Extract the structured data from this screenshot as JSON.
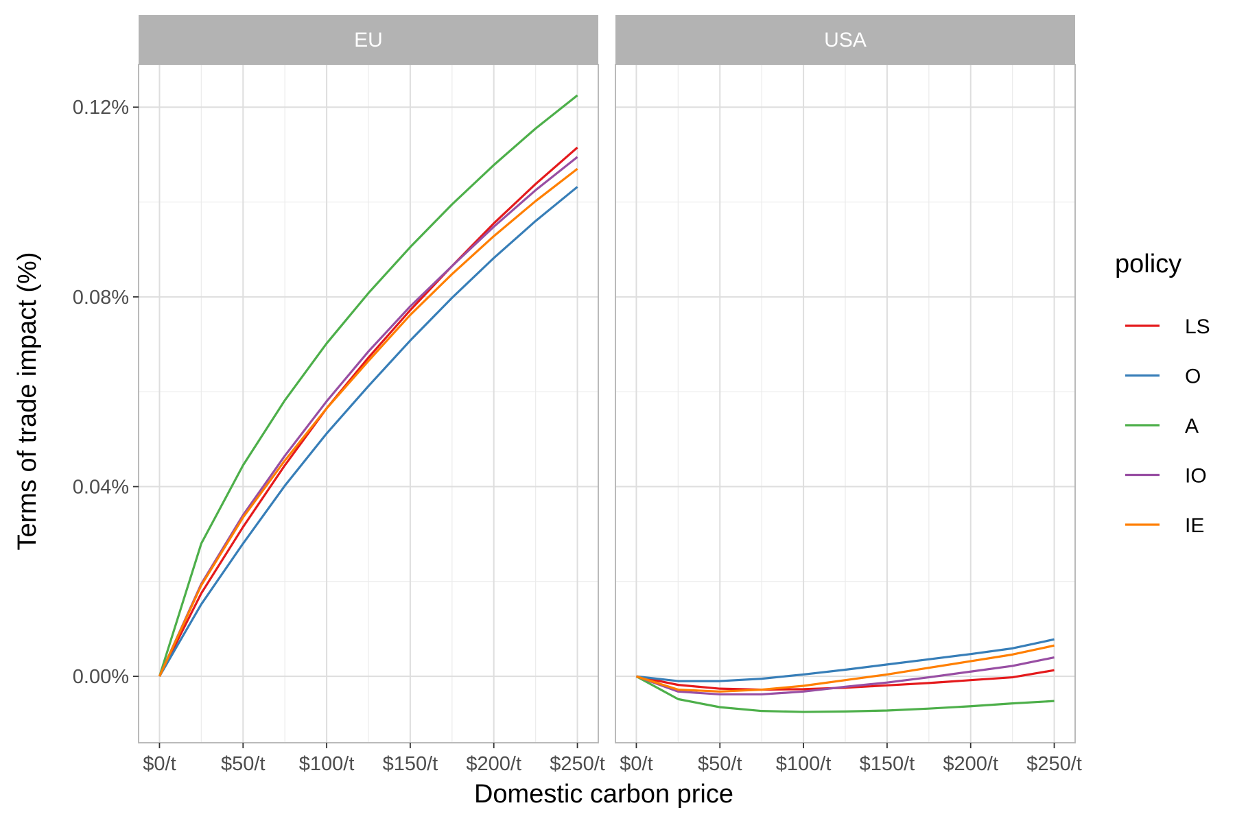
{
  "chart_data": {
    "type": "line",
    "xlabel": "Domestic carbon price",
    "ylabel": "Terms of trade impact (%)",
    "x": [
      0,
      25,
      50,
      75,
      100,
      125,
      150,
      175,
      200,
      225,
      250
    ],
    "x_ticks": [
      0,
      50,
      100,
      150,
      200,
      250
    ],
    "x_tick_labels": [
      "$0/t",
      "$50/t",
      "$100/t",
      "$150/t",
      "$200/t",
      "$250/t"
    ],
    "xlim": [
      -12.5,
      262.5
    ],
    "y_ticks": [
      0,
      0.04,
      0.08,
      0.12
    ],
    "y_tick_labels": [
      "0.00%",
      "0.04%",
      "0.08%",
      "0.12%"
    ],
    "ylim": [
      -0.014,
      0.129
    ],
    "grid": true,
    "legend": {
      "title": "policy",
      "placement": "right",
      "entries": [
        {
          "name": "LS",
          "color": "#e41a1c"
        },
        {
          "name": "O",
          "color": "#377eb8"
        },
        {
          "name": "A",
          "color": "#4daf4a"
        },
        {
          "name": "IO",
          "color": "#984ea3"
        },
        {
          "name": "IE",
          "color": "#ff7f00"
        }
      ]
    },
    "facets": [
      {
        "label": "EU",
        "series": [
          {
            "name": "LS",
            "color": "#e41a1c",
            "values": [
              0,
              0.0175,
              0.0315,
              0.0445,
              0.0565,
              0.0672,
              0.0772,
              0.0865,
              0.0955,
              0.1038,
              0.1115
            ]
          },
          {
            "name": "O",
            "color": "#377eb8",
            "values": [
              0,
              0.0152,
              0.028,
              0.0402,
              0.0512,
              0.0612,
              0.0708,
              0.0798,
              0.0882,
              0.096,
              0.1032
            ]
          },
          {
            "name": "A",
            "color": "#4daf4a",
            "values": [
              0,
              0.028,
              0.0445,
              0.0582,
              0.0702,
              0.0808,
              0.0905,
              0.0995,
              0.1078,
              0.1155,
              0.1225
            ]
          },
          {
            "name": "IO",
            "color": "#984ea3",
            "values": [
              0,
              0.0195,
              0.034,
              0.0465,
              0.058,
              0.0685,
              0.078,
              0.0865,
              0.0948,
              0.1025,
              0.1095
            ]
          },
          {
            "name": "IE",
            "color": "#ff7f00",
            "values": [
              0,
              0.0192,
              0.0335,
              0.0455,
              0.0565,
              0.0665,
              0.0762,
              0.0848,
              0.0928,
              0.1002,
              0.107
            ]
          }
        ]
      },
      {
        "label": "USA",
        "series": [
          {
            "name": "LS",
            "color": "#e41a1c",
            "values": [
              0,
              -0.0018,
              -0.0026,
              -0.0028,
              -0.0027,
              -0.0024,
              -0.0019,
              -0.0014,
              -0.0008,
              -0.0002,
              0.0013
            ]
          },
          {
            "name": "O",
            "color": "#377eb8",
            "values": [
              0,
              -0.001,
              -0.001,
              -0.0005,
              0.0004,
              0.0014,
              0.0025,
              0.0036,
              0.0047,
              0.0059,
              0.0078
            ]
          },
          {
            "name": "A",
            "color": "#4daf4a",
            "values": [
              0,
              -0.0048,
              -0.0065,
              -0.0073,
              -0.0075,
              -0.0074,
              -0.0072,
              -0.0068,
              -0.0063,
              -0.0057,
              -0.0052
            ]
          },
          {
            "name": "IO",
            "color": "#984ea3",
            "values": [
              0,
              -0.0032,
              -0.0038,
              -0.0038,
              -0.0032,
              -0.0022,
              -0.0013,
              -0.0002,
              0.001,
              0.0022,
              0.004
            ]
          },
          {
            "name": "IE",
            "color": "#ff7f00",
            "values": [
              0,
              -0.0028,
              -0.0032,
              -0.0028,
              -0.002,
              -0.0008,
              0.0004,
              0.0018,
              0.0032,
              0.0046,
              0.0065
            ]
          }
        ]
      }
    ]
  }
}
